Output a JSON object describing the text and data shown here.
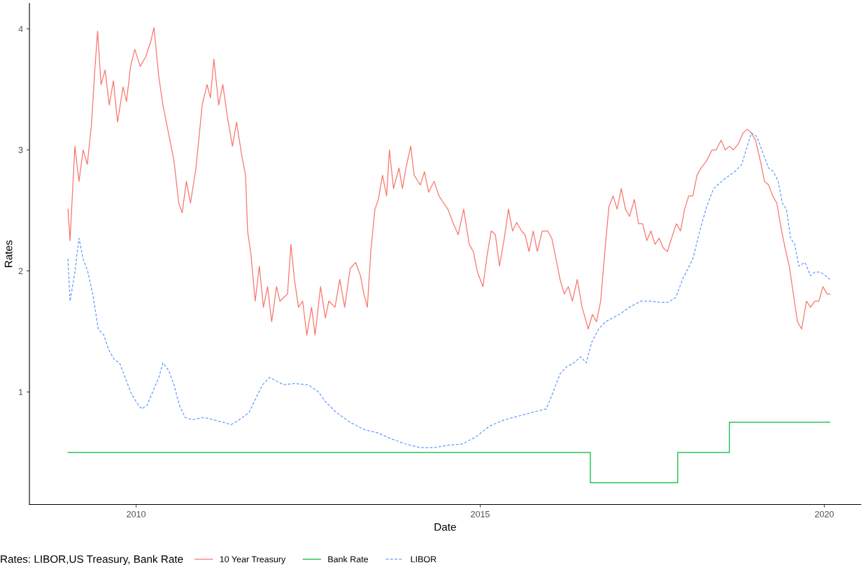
{
  "chart_data": {
    "type": "line",
    "xlabel": "Date",
    "ylabel": "Rates",
    "legend_title": "Rates: LIBOR,US Treasury, Bank Rate",
    "legend": "bottom",
    "grid": false,
    "xlim": [
      2008.45,
      2020.53
    ],
    "ylim": [
      0.07,
      4.21
    ],
    "xticks": [
      2010,
      2015,
      2020
    ],
    "yticks": [
      1,
      2,
      3,
      4
    ],
    "series": [
      {
        "name": "10 Year Treasury",
        "color": "#f8766d",
        "line_style": "solid",
        "x": [
          2009.01,
          2009.04,
          2009.11,
          2009.17,
          2009.23,
          2009.29,
          2009.35,
          2009.4,
          2009.44,
          2009.49,
          2009.55,
          2009.61,
          2009.67,
          2009.73,
          2009.81,
          2009.86,
          2009.92,
          2009.98,
          2010.06,
          2010.14,
          2010.21,
          2010.26,
          2010.33,
          2010.39,
          2010.47,
          2010.55,
          2010.62,
          2010.67,
          2010.73,
          2010.79,
          2010.87,
          2010.96,
          2011.03,
          2011.08,
          2011.13,
          2011.2,
          2011.26,
          2011.33,
          2011.4,
          2011.46,
          2011.53,
          2011.59,
          2011.62,
          2011.67,
          2011.73,
          2011.79,
          2011.85,
          2011.91,
          2011.97,
          2012.04,
          2012.09,
          2012.2,
          2012.25,
          2012.3,
          2012.36,
          2012.42,
          2012.48,
          2012.55,
          2012.6,
          2012.68,
          2012.75,
          2012.8,
          2012.89,
          2012.96,
          2013.03,
          2013.11,
          2013.19,
          2013.26,
          2013.31,
          2013.36,
          2013.41,
          2013.47,
          2013.52,
          2013.58,
          2013.64,
          2013.68,
          2013.74,
          2013.82,
          2013.87,
          2013.92,
          2013.99,
          2014.04,
          2014.13,
          2014.19,
          2014.25,
          2014.33,
          2014.4,
          2014.47,
          2014.53,
          2014.61,
          2014.68,
          2014.76,
          2014.84,
          2014.9,
          2014.96,
          2015.04,
          2015.1,
          2015.16,
          2015.22,
          2015.28,
          2015.35,
          2015.41,
          2015.47,
          2015.53,
          2015.6,
          2015.65,
          2015.71,
          2015.77,
          2015.83,
          2015.9,
          2015.98,
          2016.04,
          2016.1,
          2016.16,
          2016.22,
          2016.28,
          2016.34,
          2016.41,
          2016.48,
          2016.57,
          2016.63,
          2016.69,
          2016.75,
          2016.82,
          2016.87,
          2016.93,
          2016.99,
          2017.05,
          2017.11,
          2017.17,
          2017.24,
          2017.3,
          2017.36,
          2017.42,
          2017.48,
          2017.54,
          2017.6,
          2017.66,
          2017.72,
          2017.78,
          2017.85,
          2017.91,
          2017.97,
          2018.03,
          2018.09,
          2018.15,
          2018.21,
          2018.29,
          2018.37,
          2018.43,
          2018.5,
          2018.56,
          2018.62,
          2018.68,
          2018.75,
          2018.82,
          2018.88,
          2018.94,
          2019.0,
          2019.07,
          2019.13,
          2019.19,
          2019.25,
          2019.31,
          2019.37,
          2019.43,
          2019.49,
          2019.55,
          2019.61,
          2019.67,
          2019.74,
          2019.8,
          2019.86,
          2019.92,
          2019.98,
          2020.04,
          2020.08
        ],
        "values": [
          2.51,
          2.25,
          3.03,
          2.74,
          3.0,
          2.88,
          3.2,
          3.66,
          3.98,
          3.54,
          3.66,
          3.37,
          3.57,
          3.23,
          3.52,
          3.4,
          3.69,
          3.83,
          3.69,
          3.77,
          3.89,
          4.01,
          3.6,
          3.37,
          3.14,
          2.91,
          2.56,
          2.48,
          2.74,
          2.56,
          2.85,
          3.37,
          3.54,
          3.43,
          3.75,
          3.37,
          3.54,
          3.26,
          3.03,
          3.23,
          2.97,
          2.79,
          2.33,
          2.13,
          1.75,
          2.04,
          1.7,
          1.87,
          1.58,
          1.87,
          1.75,
          1.81,
          2.22,
          1.93,
          1.7,
          1.75,
          1.47,
          1.7,
          1.47,
          1.87,
          1.61,
          1.75,
          1.7,
          1.93,
          1.7,
          2.02,
          2.07,
          1.96,
          1.81,
          1.7,
          2.16,
          2.51,
          2.59,
          2.79,
          2.62,
          3.0,
          2.68,
          2.85,
          2.68,
          2.85,
          3.03,
          2.79,
          2.71,
          2.82,
          2.65,
          2.74,
          2.62,
          2.56,
          2.51,
          2.39,
          2.3,
          2.51,
          2.22,
          2.16,
          1.99,
          1.87,
          2.13,
          2.33,
          2.3,
          2.04,
          2.27,
          2.51,
          2.33,
          2.4,
          2.33,
          2.3,
          2.16,
          2.33,
          2.16,
          2.33,
          2.33,
          2.27,
          2.1,
          1.93,
          1.81,
          1.87,
          1.75,
          1.93,
          1.7,
          1.52,
          1.64,
          1.58,
          1.75,
          2.22,
          2.53,
          2.62,
          2.51,
          2.68,
          2.51,
          2.45,
          2.59,
          2.39,
          2.39,
          2.25,
          2.33,
          2.22,
          2.27,
          2.19,
          2.16,
          2.27,
          2.39,
          2.33,
          2.51,
          2.62,
          2.62,
          2.79,
          2.85,
          2.91,
          3.0,
          3.0,
          3.08,
          3.0,
          3.03,
          3.0,
          3.05,
          3.14,
          3.17,
          3.14,
          3.08,
          2.91,
          2.74,
          2.71,
          2.62,
          2.56,
          2.36,
          2.19,
          2.04,
          1.81,
          1.58,
          1.52,
          1.75,
          1.7,
          1.75,
          1.75,
          1.87,
          1.81,
          1.81
        ]
      },
      {
        "name": "Bank Rate",
        "color": "#00ba38",
        "type": "step",
        "line_style": "solid",
        "x": [
          2009.01,
          2016.6,
          2017.87,
          2018.62,
          2020.08
        ],
        "values": [
          0.5,
          0.25,
          0.5,
          0.75,
          0.75
        ]
      },
      {
        "name": "LIBOR",
        "color": "#619cff",
        "line_style": "dashed",
        "x": [
          2009.01,
          2009.04,
          2009.11,
          2009.17,
          2009.23,
          2009.3,
          2009.37,
          2009.45,
          2009.53,
          2009.6,
          2009.68,
          2009.76,
          2009.84,
          2009.92,
          2010.0,
          2010.08,
          2010.16,
          2010.24,
          2010.33,
          2010.39,
          2010.47,
          2010.55,
          2010.63,
          2010.71,
          2010.82,
          2010.98,
          2011.13,
          2011.26,
          2011.38,
          2011.5,
          2011.64,
          2011.74,
          2011.84,
          2011.94,
          2012.04,
          2012.14,
          2012.3,
          2012.5,
          2012.65,
          2012.75,
          2012.91,
          2013.11,
          2013.31,
          2013.52,
          2013.72,
          2013.92,
          2014.13,
          2014.33,
          2014.53,
          2014.74,
          2014.94,
          2015.14,
          2015.35,
          2015.55,
          2015.75,
          2015.96,
          2016.06,
          2016.16,
          2016.26,
          2016.36,
          2016.46,
          2016.54,
          2016.62,
          2016.72,
          2016.82,
          2016.92,
          2017.02,
          2017.17,
          2017.33,
          2017.48,
          2017.63,
          2017.73,
          2017.84,
          2017.94,
          2018.09,
          2018.19,
          2018.29,
          2018.39,
          2018.55,
          2018.7,
          2018.8,
          2018.88,
          2018.94,
          2019.02,
          2019.11,
          2019.19,
          2019.26,
          2019.33,
          2019.39,
          2019.45,
          2019.51,
          2019.57,
          2019.63,
          2019.72,
          2019.8,
          2019.86,
          2019.94,
          2020.02,
          2020.08
        ],
        "values": [
          2.1,
          1.75,
          1.99,
          2.27,
          2.1,
          1.99,
          1.81,
          1.52,
          1.47,
          1.35,
          1.27,
          1.24,
          1.12,
          1.0,
          0.92,
          0.86,
          0.89,
          1.0,
          1.12,
          1.24,
          1.18,
          1.06,
          0.89,
          0.79,
          0.77,
          0.79,
          0.77,
          0.75,
          0.73,
          0.77,
          0.83,
          0.95,
          1.06,
          1.12,
          1.09,
          1.06,
          1.07,
          1.06,
          1.0,
          0.92,
          0.83,
          0.75,
          0.69,
          0.66,
          0.61,
          0.57,
          0.54,
          0.54,
          0.56,
          0.57,
          0.63,
          0.72,
          0.77,
          0.8,
          0.83,
          0.86,
          1.0,
          1.15,
          1.21,
          1.24,
          1.29,
          1.24,
          1.41,
          1.52,
          1.58,
          1.61,
          1.64,
          1.7,
          1.75,
          1.75,
          1.74,
          1.74,
          1.78,
          1.93,
          2.1,
          2.33,
          2.53,
          2.68,
          2.76,
          2.82,
          2.88,
          3.03,
          3.14,
          3.11,
          2.97,
          2.85,
          2.82,
          2.74,
          2.56,
          2.51,
          2.27,
          2.22,
          2.04,
          2.07,
          1.96,
          1.99,
          1.99,
          1.96,
          1.93
        ]
      }
    ]
  }
}
